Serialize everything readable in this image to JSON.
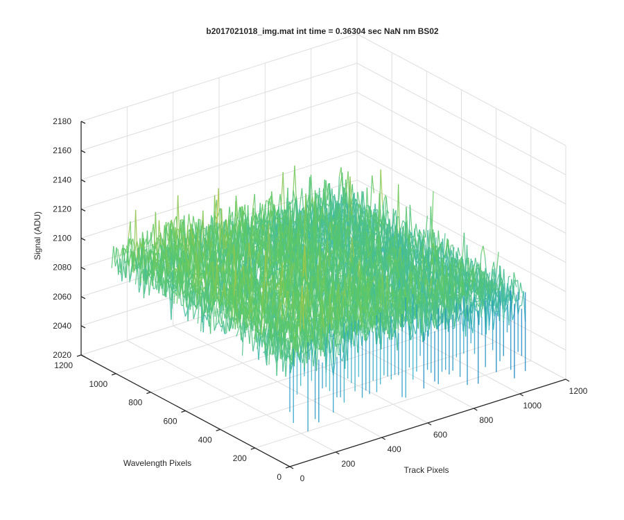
{
  "chart_data": {
    "type": "surface3d",
    "title": "b2017021018_img.mat int time = 0.36304 sec  NaN nm BS02",
    "xlabel": "Track Pixels",
    "ylabel": "Wavelength Pixels",
    "zlabel": "Signal (ADU)",
    "xlim": [
      0,
      1200
    ],
    "ylim": [
      0,
      1200
    ],
    "zlim": [
      2020,
      2180
    ],
    "xticks": [
      "0",
      "200",
      "400",
      "600",
      "800",
      "1000",
      "1200"
    ],
    "yticks": [
      "0",
      "200",
      "400",
      "600",
      "800",
      "1000",
      "1200"
    ],
    "zticks": [
      "2020",
      "2040",
      "2060",
      "2080",
      "2100",
      "2120",
      "2140",
      "2160",
      "2180"
    ],
    "data_extent": {
      "x": [
        0,
        1024
      ],
      "y": [
        0,
        1024
      ]
    },
    "surface_description": "noisy detector image surface, signal roughly 2040-2150 ADU",
    "signal_mean_ridge": [
      {
        "track_pixel": 0,
        "mean": 2098
      },
      {
        "track_pixel": 256,
        "mean": 2097
      },
      {
        "track_pixel": 512,
        "mean": 2094
      },
      {
        "track_pixel": 768,
        "mean": 2090
      },
      {
        "track_pixel": 1024,
        "mean": 2085
      }
    ],
    "colormap": [
      "#0072bd",
      "#2db0c8",
      "#5ec962",
      "#e5c231"
    ],
    "grid": true
  }
}
